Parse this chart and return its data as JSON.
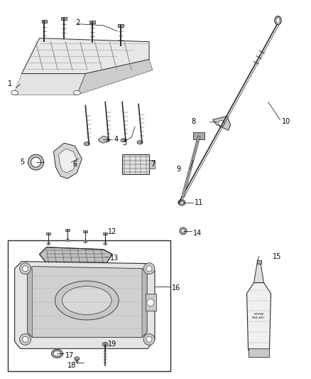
{
  "bg_color": "#ffffff",
  "fig_width": 4.38,
  "fig_height": 5.33,
  "dpi": 100,
  "line_color": "#2a2a2a",
  "gray_light": "#c8c8c8",
  "gray_mid": "#aaaaaa",
  "gray_dark": "#666666"
}
